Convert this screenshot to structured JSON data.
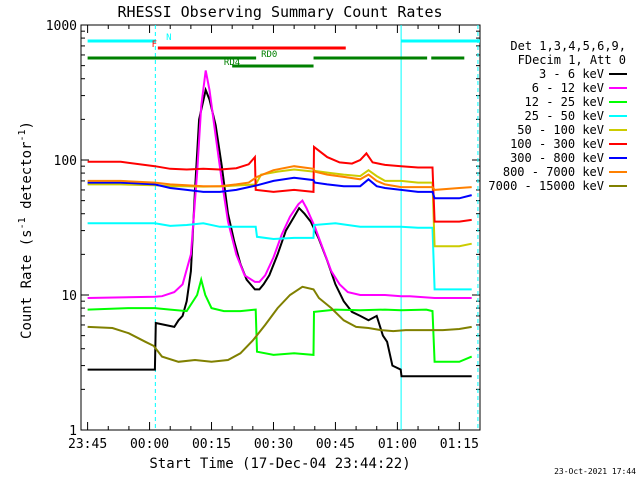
{
  "chart_data": {
    "type": "line",
    "title": "RHESSI Observing Summary Count Rates",
    "xlabel": "Start Time (17-Dec-04 23:44:22)",
    "ylabel": "Count Rate (s⁻¹ detector⁻¹)",
    "ylabel_parts": {
      "main": "Count Rate (s",
      "sup1": "-1",
      "mid": " detector",
      "sup2": "-1",
      "end": ")"
    },
    "yscale": "log",
    "ylim": [
      1,
      1000
    ],
    "xlim": [
      -1.6,
      95
    ],
    "x_units": "minutes after 23:45",
    "x_tick_labels": [
      {
        "x": 0,
        "label": "23:45"
      },
      {
        "x": 15,
        "label": "00:00"
      },
      {
        "x": 30,
        "label": "00:15"
      },
      {
        "x": 45,
        "label": "00:30"
      },
      {
        "x": 60,
        "label": "00:45"
      },
      {
        "x": 75,
        "label": "01:00"
      },
      {
        "x": 90,
        "label": "01:15"
      }
    ],
    "y_tick_labels": [
      {
        "y": 1,
        "label": "1"
      },
      {
        "y": 10,
        "label": "10"
      },
      {
        "y": 100,
        "label": "100"
      },
      {
        "y": 1000,
        "label": "1000"
      }
    ],
    "legend_header": [
      "Det 1,3,4,5,6,9,",
      "FDecim 1, Att 0"
    ],
    "legend_position": "right",
    "footer_date": "23-Oct-2021 17:44",
    "state_bars": [
      {
        "name": "N",
        "color": "#00ffff",
        "segments": [
          [
            0,
            16.4
          ],
          [
            75.9,
            95
          ]
        ],
        "label_x": 19
      },
      {
        "name": "F",
        "color": "#ff0000",
        "segments": [
          [
            17,
            62.5
          ]
        ],
        "label_x": 15.5
      },
      {
        "name": "RD0",
        "color": "#008000",
        "segments": [
          [
            0,
            40.8
          ],
          [
            54.7,
            82.2
          ],
          [
            83.2,
            91.2
          ]
        ],
        "label_x": 42
      },
      {
        "name": "RD4",
        "color": "#008000",
        "segments": [
          [
            35,
            54.7
          ]
        ],
        "label_x": 33
      }
    ],
    "vertical_lines": [
      {
        "x": 16.4,
        "color": "#00ffff",
        "dashed": true
      },
      {
        "x": 75.9,
        "color": "#00ffff",
        "dashed": false
      },
      {
        "x": 94.5,
        "color": "#00ffff",
        "dashed": true
      }
    ],
    "series": [
      {
        "name": "3 - 6 keV",
        "color": "#000000",
        "points": [
          [
            0,
            2.8
          ],
          [
            16.3,
            2.8
          ],
          [
            16.5,
            6.2
          ],
          [
            21,
            5.8
          ],
          [
            22,
            6.5
          ],
          [
            23,
            7
          ],
          [
            24,
            9
          ],
          [
            25,
            15
          ],
          [
            26,
            60
          ],
          [
            27,
            200
          ],
          [
            28.6,
            330
          ],
          [
            29.5,
            280
          ],
          [
            31,
            180
          ],
          [
            32.5,
            90
          ],
          [
            34,
            40
          ],
          [
            35.5,
            25
          ],
          [
            37,
            17
          ],
          [
            38.5,
            13
          ],
          [
            40.5,
            11
          ],
          [
            41.6,
            11
          ],
          [
            42.6,
            12
          ],
          [
            44,
            14
          ],
          [
            46,
            20
          ],
          [
            48,
            30
          ],
          [
            50,
            38
          ],
          [
            51.2,
            44
          ],
          [
            52.5,
            40
          ],
          [
            54,
            35
          ],
          [
            56,
            26
          ],
          [
            58,
            18
          ],
          [
            60,
            12
          ],
          [
            62,
            9
          ],
          [
            64,
            7.5
          ],
          [
            66,
            7
          ],
          [
            68,
            6.5
          ],
          [
            70,
            7
          ],
          [
            71.5,
            5
          ],
          [
            72.5,
            4.5
          ],
          [
            73.8,
            3
          ],
          [
            75.8,
            2.8
          ],
          [
            76,
            2.5
          ],
          [
            93,
            2.5
          ]
        ]
      },
      {
        "name": "6 - 12 keV",
        "color": "#ff00ff",
        "points": [
          [
            0,
            9.5
          ],
          [
            16.3,
            9.7
          ],
          [
            18,
            9.8
          ],
          [
            21,
            10.5
          ],
          [
            23,
            12
          ],
          [
            25,
            20
          ],
          [
            26.5,
            80
          ],
          [
            27.5,
            250
          ],
          [
            28.6,
            460
          ],
          [
            29.5,
            330
          ],
          [
            31,
            150
          ],
          [
            32.5,
            70
          ],
          [
            34,
            35
          ],
          [
            36,
            20
          ],
          [
            38,
            14
          ],
          [
            40.5,
            12.5
          ],
          [
            41.6,
            12.5
          ],
          [
            43,
            14
          ],
          [
            45,
            19
          ],
          [
            47,
            28
          ],
          [
            49,
            38
          ],
          [
            51,
            47
          ],
          [
            52,
            50
          ],
          [
            53,
            44
          ],
          [
            55,
            32
          ],
          [
            57,
            22
          ],
          [
            59,
            15
          ],
          [
            61,
            12
          ],
          [
            63,
            10.5
          ],
          [
            66,
            10
          ],
          [
            69,
            10
          ],
          [
            72,
            10
          ],
          [
            75.9,
            9.8
          ],
          [
            78,
            9.8
          ],
          [
            84,
            9.5
          ],
          [
            90,
            9.5
          ],
          [
            93,
            9.5
          ]
        ]
      },
      {
        "name": "12 - 25 keV",
        "color": "#00ff00",
        "points": [
          [
            0,
            7.8
          ],
          [
            10,
            8
          ],
          [
            16.3,
            8
          ],
          [
            20,
            7.8
          ],
          [
            24,
            7.6
          ],
          [
            26.5,
            10
          ],
          [
            27.5,
            13
          ],
          [
            28.5,
            10
          ],
          [
            30,
            8
          ],
          [
            33,
            7.6
          ],
          [
            37,
            7.6
          ],
          [
            40.7,
            7.8
          ],
          [
            41,
            3.8
          ],
          [
            45,
            3.6
          ],
          [
            50,
            3.7
          ],
          [
            54.7,
            3.6
          ],
          [
            54.8,
            7.5
          ],
          [
            60,
            7.8
          ],
          [
            66,
            7.7
          ],
          [
            72,
            7.8
          ],
          [
            75.9,
            7.7
          ],
          [
            82,
            7.8
          ],
          [
            83.5,
            7.6
          ],
          [
            84,
            3.2
          ],
          [
            90,
            3.2
          ],
          [
            93,
            3.5
          ]
        ]
      },
      {
        "name": "25 - 50 keV",
        "color": "#00ffff",
        "points": [
          [
            0,
            34
          ],
          [
            16.3,
            34
          ],
          [
            20,
            32.5
          ],
          [
            24,
            33
          ],
          [
            28,
            34
          ],
          [
            32,
            32
          ],
          [
            36,
            32
          ],
          [
            40.7,
            32
          ],
          [
            41,
            27
          ],
          [
            45,
            26
          ],
          [
            50,
            26.5
          ],
          [
            54.7,
            26.5
          ],
          [
            54.8,
            33
          ],
          [
            60,
            34
          ],
          [
            66,
            32
          ],
          [
            72,
            32
          ],
          [
            75.9,
            32
          ],
          [
            80,
            31.5
          ],
          [
            83.5,
            31.5
          ],
          [
            84,
            11
          ],
          [
            90,
            11
          ],
          [
            93,
            11
          ]
        ]
      },
      {
        "name": "50 - 100 keV",
        "color": "#cccc00",
        "points": [
          [
            0,
            66
          ],
          [
            8,
            66
          ],
          [
            16.3,
            65
          ],
          [
            20,
            64
          ],
          [
            24,
            64
          ],
          [
            28,
            63.5
          ],
          [
            33,
            64
          ],
          [
            37,
            65
          ],
          [
            40.7,
            66
          ],
          [
            42,
            78
          ],
          [
            46,
            82
          ],
          [
            50,
            85
          ],
          [
            54.7,
            82
          ],
          [
            55,
            83
          ],
          [
            59,
            80
          ],
          [
            62,
            78
          ],
          [
            66,
            76
          ],
          [
            68,
            84
          ],
          [
            70,
            76
          ],
          [
            72,
            70
          ],
          [
            75.9,
            70
          ],
          [
            80,
            68
          ],
          [
            83.5,
            68
          ],
          [
            84,
            23
          ],
          [
            90,
            23
          ],
          [
            93,
            24
          ]
        ]
      },
      {
        "name": "100 - 300 keV",
        "color": "#ff0000",
        "points": [
          [
            0,
            97
          ],
          [
            8,
            97
          ],
          [
            16.3,
            90
          ],
          [
            20,
            86
          ],
          [
            24,
            85
          ],
          [
            28,
            86
          ],
          [
            32,
            85
          ],
          [
            36,
            87
          ],
          [
            39,
            93
          ],
          [
            40.5,
            105
          ],
          [
            40.7,
            60
          ],
          [
            45,
            58
          ],
          [
            50,
            60
          ],
          [
            54.7,
            58
          ],
          [
            54.8,
            125
          ],
          [
            58,
            105
          ],
          [
            61,
            96
          ],
          [
            64,
            94
          ],
          [
            66,
            100
          ],
          [
            67.5,
            112
          ],
          [
            69,
            96
          ],
          [
            72,
            92
          ],
          [
            75.9,
            90
          ],
          [
            80,
            88
          ],
          [
            83.5,
            88
          ],
          [
            84,
            35
          ],
          [
            90,
            35
          ],
          [
            93,
            36
          ]
        ]
      },
      {
        "name": "300 - 800 keV",
        "color": "#0000ff",
        "points": [
          [
            0,
            68
          ],
          [
            8,
            68
          ],
          [
            16.3,
            66
          ],
          [
            20,
            62
          ],
          [
            24,
            60
          ],
          [
            28,
            58
          ],
          [
            32,
            58
          ],
          [
            36,
            60
          ],
          [
            39,
            63
          ],
          [
            41,
            65
          ],
          [
            45,
            70
          ],
          [
            50,
            74
          ],
          [
            54.7,
            71
          ],
          [
            55,
            68
          ],
          [
            58,
            66
          ],
          [
            62,
            64
          ],
          [
            66,
            64
          ],
          [
            68,
            72
          ],
          [
            70,
            64
          ],
          [
            72,
            62
          ],
          [
            75.9,
            60
          ],
          [
            80,
            58
          ],
          [
            83.5,
            58
          ],
          [
            84,
            52
          ],
          [
            90,
            52
          ],
          [
            93,
            55
          ]
        ]
      },
      {
        "name": "800 - 7000 keV",
        "color": "#ff8000",
        "points": [
          [
            0,
            70
          ],
          [
            8,
            70
          ],
          [
            16.3,
            68
          ],
          [
            20,
            66
          ],
          [
            24,
            65
          ],
          [
            28,
            64
          ],
          [
            32,
            64
          ],
          [
            36,
            66
          ],
          [
            39,
            68
          ],
          [
            41,
            75
          ],
          [
            45,
            84
          ],
          [
            50,
            90
          ],
          [
            54.7,
            86
          ],
          [
            55,
            82
          ],
          [
            58,
            78
          ],
          [
            62,
            75
          ],
          [
            66,
            72
          ],
          [
            68,
            78
          ],
          [
            70,
            70
          ],
          [
            72,
            66
          ],
          [
            75.9,
            63
          ],
          [
            80,
            63
          ],
          [
            83.5,
            63
          ],
          [
            84,
            60
          ],
          [
            90,
            62
          ],
          [
            93,
            63
          ]
        ]
      },
      {
        "name": "7000 - 15000 keV",
        "color": "#808000",
        "points": [
          [
            0,
            5.8
          ],
          [
            6,
            5.7
          ],
          [
            10,
            5.2
          ],
          [
            14,
            4.5
          ],
          [
            16,
            4.2
          ],
          [
            18,
            3.5
          ],
          [
            22,
            3.2
          ],
          [
            26,
            3.3
          ],
          [
            30,
            3.2
          ],
          [
            34,
            3.3
          ],
          [
            37,
            3.7
          ],
          [
            40,
            4.6
          ],
          [
            43,
            6
          ],
          [
            46,
            8
          ],
          [
            49,
            10
          ],
          [
            52,
            11.5
          ],
          [
            54.7,
            11
          ],
          [
            56,
            9.5
          ],
          [
            59,
            8
          ],
          [
            62,
            6.5
          ],
          [
            65,
            5.8
          ],
          [
            68,
            5.7
          ],
          [
            71,
            5.5
          ],
          [
            74,
            5.4
          ],
          [
            77,
            5.5
          ],
          [
            80,
            5.5
          ],
          [
            83.5,
            5.5
          ],
          [
            86,
            5.5
          ],
          [
            90,
            5.6
          ],
          [
            93,
            5.8
          ]
        ]
      }
    ]
  }
}
